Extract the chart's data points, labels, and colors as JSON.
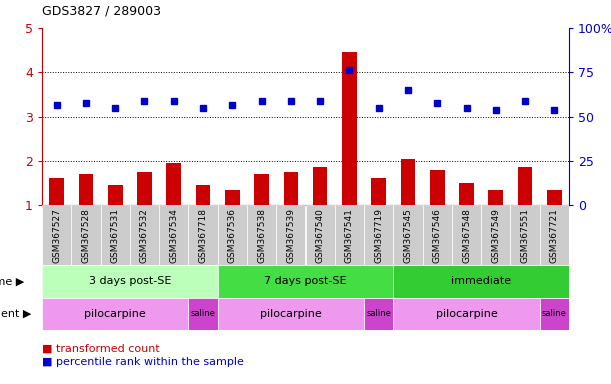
{
  "title": "GDS3827 / 289003",
  "samples": [
    "GSM367527",
    "GSM367528",
    "GSM367531",
    "GSM367532",
    "GSM367534",
    "GSM367718",
    "GSM367536",
    "GSM367538",
    "GSM367539",
    "GSM367540",
    "GSM367541",
    "GSM367719",
    "GSM367545",
    "GSM367546",
    "GSM367548",
    "GSM367549",
    "GSM367551",
    "GSM367721"
  ],
  "bar_values": [
    1.6,
    1.7,
    1.45,
    1.75,
    1.95,
    1.45,
    1.35,
    1.7,
    1.75,
    1.85,
    4.45,
    1.6,
    2.05,
    1.8,
    1.5,
    1.35,
    1.85,
    1.35
  ],
  "dot_values": [
    3.25,
    3.3,
    3.2,
    3.35,
    3.35,
    3.2,
    3.25,
    3.35,
    3.35,
    3.35,
    4.05,
    3.2,
    3.6,
    3.3,
    3.2,
    3.15,
    3.35,
    3.15
  ],
  "ylim_left": [
    1,
    5
  ],
  "ylim_right": [
    0,
    100
  ],
  "yticks_left": [
    1,
    2,
    3,
    4,
    5
  ],
  "yticks_right": [
    0,
    25,
    50,
    75,
    100
  ],
  "bar_color": "#cc0000",
  "dot_color": "#0000cc",
  "time_groups": [
    {
      "label": "3 days post-SE",
      "start": 0,
      "end": 6,
      "color": "#bbffbb"
    },
    {
      "label": "7 days post-SE",
      "start": 6,
      "end": 12,
      "color": "#44dd44"
    },
    {
      "label": "immediate",
      "start": 12,
      "end": 18,
      "color": "#33cc33"
    }
  ],
  "agent_groups": [
    {
      "label": "pilocarpine",
      "start": 0,
      "end": 5,
      "color": "#ee99ee"
    },
    {
      "label": "saline",
      "start": 5,
      "end": 6,
      "color": "#cc44cc"
    },
    {
      "label": "pilocarpine",
      "start": 6,
      "end": 11,
      "color": "#ee99ee"
    },
    {
      "label": "saline",
      "start": 11,
      "end": 12,
      "color": "#cc44cc"
    },
    {
      "label": "pilocarpine",
      "start": 12,
      "end": 17,
      "color": "#ee99ee"
    },
    {
      "label": "saline",
      "start": 17,
      "end": 18,
      "color": "#cc44cc"
    }
  ],
  "legend_bar_label": "transformed count",
  "legend_dot_label": "percentile rank within the sample",
  "time_label": "time",
  "agent_label": "agent",
  "dotted_yvals": [
    2,
    3,
    4
  ],
  "bar_width": 0.5,
  "tick_bg_color": "#cccccc",
  "spine_left_color": "#cc0000",
  "spine_right_color": "#0000cc"
}
